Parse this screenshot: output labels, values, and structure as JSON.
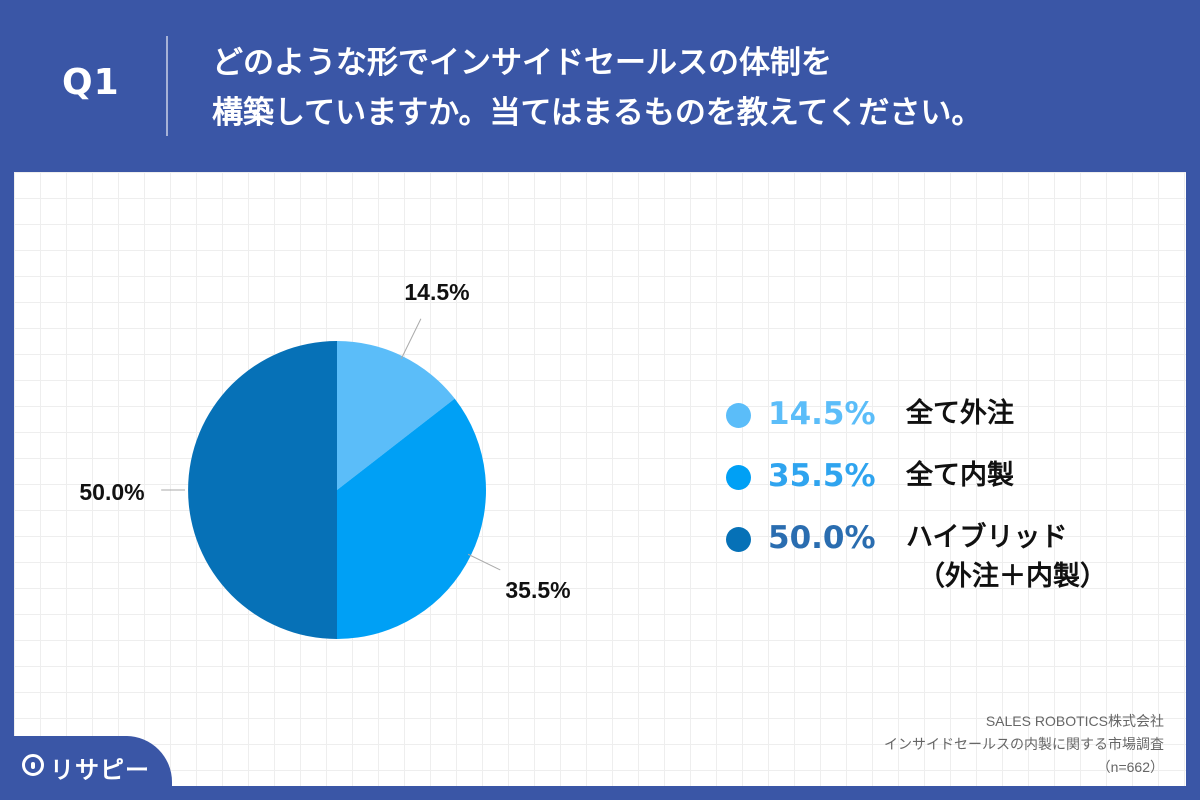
{
  "header": {
    "question_number": "Q1",
    "title_line1": "どのような形でインサイドセールスの体制を",
    "title_line2": "構築していますか。当てはまるものを教えてください。"
  },
  "chart_data": {
    "type": "pie",
    "slices": [
      {
        "label": "全て外注",
        "value": 14.5,
        "value_text": "14.5%",
        "color": "#5bbdf9"
      },
      {
        "label": "全て内製",
        "value": 35.5,
        "value_text": "35.5%",
        "color": "#00a0f5"
      },
      {
        "label": "ハイブリッド",
        "label_sub": "（外注＋内製）",
        "value": 50.0,
        "value_text": "50.0%",
        "color": "#0671b7"
      }
    ],
    "legend_placement": "right",
    "legend_value_colors": [
      "#5bbdf9",
      "#2fa4ef",
      "#2a6db0"
    ]
  },
  "source": {
    "line1": "SALES ROBOTICS株式会社",
    "line2": "インサイドセールスの内製に関する市場調査",
    "line3": "（n=662）"
  },
  "logo": {
    "text": "リサピー",
    "icon": "location-pin-icon"
  },
  "colors": {
    "header_bg": "#3a56a6",
    "panel_bg": "#ffffff",
    "label_line": "#aaaaaa"
  }
}
